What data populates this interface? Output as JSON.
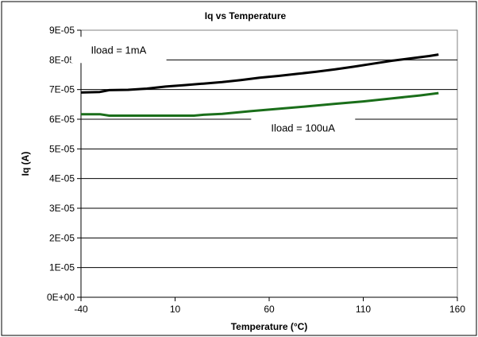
{
  "chart_data": {
    "type": "line",
    "title": "Iq vs Temperature",
    "xlabel": "Temperature (°C)",
    "ylabel": "Iq (A)",
    "xlim": [
      -40,
      160
    ],
    "ylim": [
      0,
      9e-05
    ],
    "x_ticks": [
      -40,
      10,
      60,
      110,
      160
    ],
    "x_tick_labels": [
      "-40",
      "10",
      "60",
      "110",
      "160"
    ],
    "y_ticks": [
      0,
      1e-05,
      2e-05,
      3e-05,
      4e-05,
      5e-05,
      6e-05,
      7e-05,
      8e-05,
      9e-05
    ],
    "y_tick_labels": [
      "0E+00",
      "1E-05",
      "2E-05",
      "3E-05",
      "4E-05",
      "5E-05",
      "6E-05",
      "7E-05",
      "8E-05",
      "9E-05"
    ],
    "grid": "horizontal",
    "legend": "none",
    "series": [
      {
        "color": "#000000",
        "x": [
          -40,
          -30,
          -25,
          -15,
          -5,
          5,
          15,
          25,
          35,
          45,
          55,
          65,
          75,
          85,
          95,
          105,
          115,
          125,
          135,
          145,
          150
        ],
        "y": [
          6.9e-05,
          6.92e-05,
          6.98e-05,
          6.99e-05,
          7.03e-05,
          7.1e-05,
          7.15e-05,
          7.2e-05,
          7.25e-05,
          7.32e-05,
          7.4e-05,
          7.46e-05,
          7.53e-05,
          7.6e-05,
          7.68e-05,
          7.77e-05,
          7.87e-05,
          7.97e-05,
          8.05e-05,
          8.13e-05,
          8.18e-05
        ]
      },
      {
        "color": "#1a6e1a",
        "x": [
          -40,
          -30,
          -25,
          -10,
          5,
          20,
          25,
          35,
          50,
          65,
          80,
          95,
          110,
          125,
          140,
          150
        ],
        "y": [
          6.17e-05,
          6.17e-05,
          6.12e-05,
          6.12e-05,
          6.12e-05,
          6.12e-05,
          6.15e-05,
          6.18e-05,
          6.27e-05,
          6.35e-05,
          6.43e-05,
          6.52e-05,
          6.6e-05,
          6.7e-05,
          6.8e-05,
          6.88e-05
        ]
      }
    ],
    "annotations": [
      {
        "text": "Iload = 1mA",
        "x": -20,
        "y": 8.35e-05
      },
      {
        "text": "Iload = 100uA",
        "x": 78,
        "y": 5.72e-05
      }
    ]
  }
}
